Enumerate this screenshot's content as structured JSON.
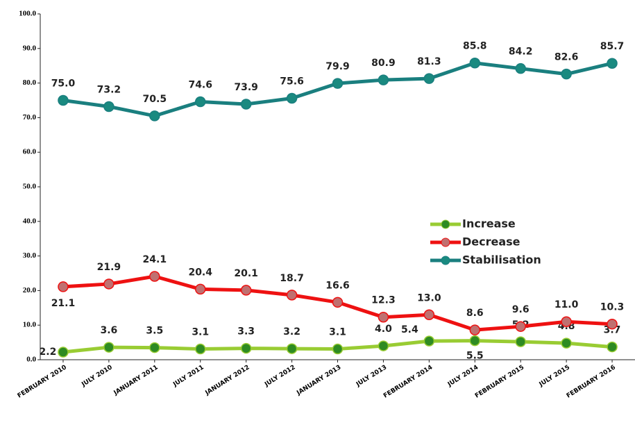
{
  "chart_data": {
    "type": "line",
    "categories": [
      "FEBRUARY 2010",
      "JULY 2010",
      "JANUARY 2011",
      "JULY 2011",
      "JANUARY 2012",
      "JULY 2012",
      "JANUARY 2013",
      "JULY 2013",
      "FEBRUARY 2014",
      "JULY 2014",
      "FEBRUARY 2015",
      "JULY 2015",
      "FEBRUARY 2016"
    ],
    "series": [
      {
        "name": "Increase",
        "color": "#99cc33",
        "marker_color": "#2e8b22",
        "values": [
          2.2,
          3.6,
          3.5,
          3.1,
          3.3,
          3.2,
          3.1,
          4.0,
          5.4,
          5.5,
          5.2,
          4.8,
          3.7
        ],
        "value_labels": [
          "2.2",
          "3.6",
          "3.5",
          "3.1",
          "3.3",
          "3.2",
          "3.1",
          "4.0",
          "5.4",
          "5.5",
          "5.2",
          "4.8",
          "3.7"
        ]
      },
      {
        "name": "Decrease",
        "color": "#ee1111",
        "marker_color": "#c07070",
        "values": [
          21.1,
          21.9,
          24.1,
          20.4,
          20.1,
          18.7,
          16.6,
          12.3,
          13.0,
          8.6,
          9.6,
          11.0,
          10.3
        ],
        "value_labels": [
          "21.1",
          "21.9",
          "24.1",
          "20.4",
          "20.1",
          "18.7",
          "16.6",
          "12.3",
          "13.0",
          "8.6",
          "9.6",
          "11.0",
          "10.3"
        ]
      },
      {
        "name": "Stabilisation",
        "color": "#1a7f7f",
        "marker_color": "#1a8a80",
        "values": [
          75.0,
          73.2,
          70.5,
          74.6,
          73.9,
          75.6,
          79.9,
          80.9,
          81.3,
          85.8,
          84.2,
          82.6,
          85.7
        ],
        "value_labels": [
          "75.0",
          "73.2",
          "70.5",
          "74.6",
          "73.9",
          "75.6",
          "79.9",
          "80.9",
          "81.3",
          "85.8",
          "84.2",
          "82.6",
          "85.7"
        ]
      }
    ],
    "ylim": [
      0,
      100
    ],
    "yticks": [
      {
        "value": 0,
        "label": "0.0"
      },
      {
        "value": 10,
        "label": "10.0"
      },
      {
        "value": 20,
        "label": "20.0"
      },
      {
        "value": 30,
        "label": "30.0"
      },
      {
        "value": 40,
        "label": "40.0"
      },
      {
        "value": 50,
        "label": "50.0"
      },
      {
        "value": 60,
        "label": "60.0"
      },
      {
        "value": 70,
        "label": "70.0"
      },
      {
        "value": 80,
        "label": "80.0"
      },
      {
        "value": 90,
        "label": "90.0"
      },
      {
        "value": 100,
        "label": "100.0"
      }
    ],
    "legend": "center-right"
  }
}
